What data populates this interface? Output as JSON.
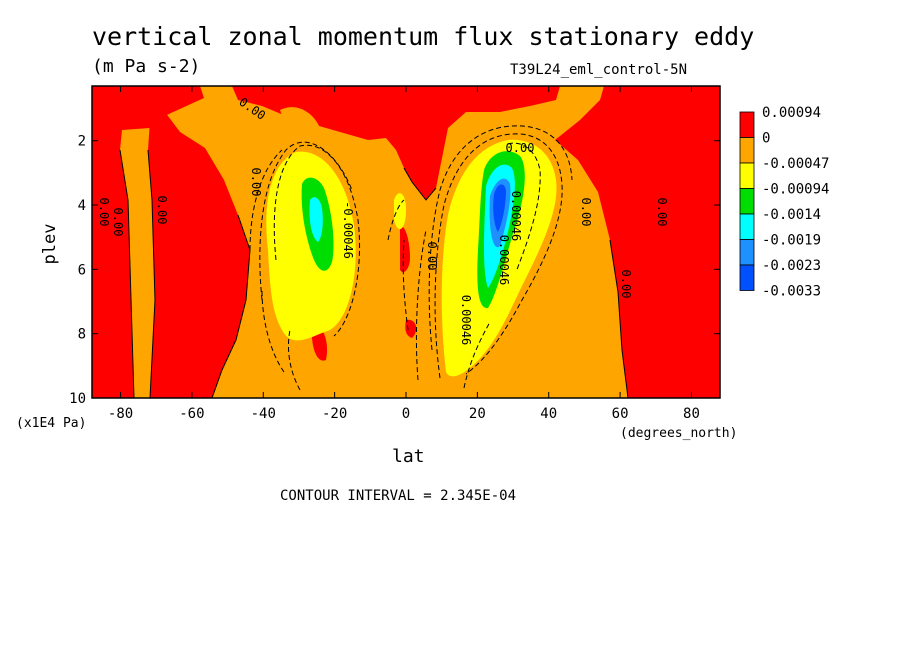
{
  "header": {
    "title": "vertical zonal momentum flux stationary eddy",
    "units": "(m Pa s-2)",
    "dataset": "T39L24_eml_control-5N"
  },
  "footer": {
    "contour_interval": "CONTOUR INTERVAL = 2.345E-04"
  },
  "chart_data": {
    "type": "heatmap",
    "title": "vertical zonal momentum flux stationary eddy",
    "units": "(m Pa s-2)",
    "xlabel": "lat",
    "xunits": "(degrees_north)",
    "ylabel": "plev",
    "yunits": "(x1E4 Pa)",
    "xlim": [
      -88,
      88
    ],
    "ylim": [
      10,
      0.3
    ],
    "xticks": [
      -80,
      -60,
      -40,
      -20,
      0,
      20,
      40,
      60,
      80
    ],
    "xtick_labels": [
      "-80",
      "-60",
      "-40",
      "-20",
      "0",
      "20",
      "40",
      "60",
      "80"
    ],
    "yticks": [
      2,
      4,
      6,
      8,
      10
    ],
    "ytick_labels": [
      "2",
      "4",
      "6",
      "8",
      "10"
    ],
    "legend": {
      "position": "right",
      "levels": [
        {
          "label": "0.00094",
          "color": "#ff0000"
        },
        {
          "label": "0",
          "color": "#ffa500"
        },
        {
          "label": "-0.00047",
          "color": "#ffff00"
        },
        {
          "label": "-0.00094",
          "color": "#00dd00"
        },
        {
          "label": "-0.0014",
          "color": "#00ffff"
        },
        {
          "label": "-0.0019",
          "color": "#1e90ff"
        },
        {
          "label": "-0.0023",
          "color": "#0050ff"
        },
        {
          "label": "-0.0033",
          "color": ""
        }
      ]
    },
    "contour_labels": [
      "0.00",
      "0.00",
      "0.00",
      "0.00",
      "0.00",
      "0.00",
      "0.00",
      "0.00",
      "0.00",
      "0.00",
      "-0.00046",
      "0.00046",
      "0.00046",
      "0.00046"
    ],
    "contour_interval": "2.345E-04",
    "features": [
      {
        "region": "positive",
        "lon_range": [
          -88,
          -76
        ],
        "plev_range": [
          0.3,
          10
        ]
      },
      {
        "region": "positive",
        "lon_range": [
          -68,
          -48
        ],
        "plev_range": [
          1.5,
          10
        ]
      },
      {
        "region": "positive",
        "lon_range": [
          -4,
          8
        ],
        "plev_range": [
          0.3,
          4.5
        ]
      },
      {
        "region": "positive",
        "lon_range": [
          52,
          88
        ],
        "plev_range": [
          0.3,
          10
        ]
      },
      {
        "region": "negative",
        "center": [
          -26,
          4.8
        ],
        "min": -0.0019
      },
      {
        "region": "negative",
        "center": [
          26,
          4.4
        ],
        "min": -0.0033
      }
    ]
  }
}
